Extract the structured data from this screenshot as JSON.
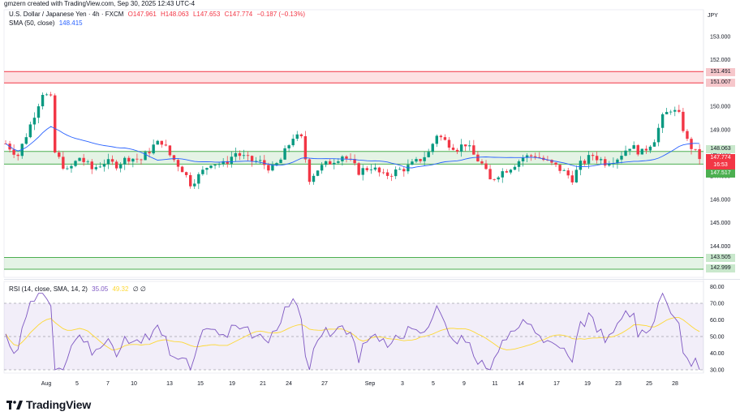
{
  "header": {
    "credit": "gmzern created with TradingView.com, Sep 30, 2025 12:43 UTC-4"
  },
  "legend": {
    "symbol": "U.S. Dollar / Japanese Yen · 4h · FXCM",
    "open": "O147.961",
    "high": "H148.063",
    "low": "L147.653",
    "close": "C147.774",
    "change": "−0.187 (−0.13%)",
    "sma_label": "SMA (50, close)",
    "sma_value": "148.415",
    "rsi_label": "RSI (14, close, SMA, 14, 2)",
    "rsi_value": "35.05",
    "rsi_sma_value": "49.32",
    "rsi_extra": "∅ ∅"
  },
  "currency": "JPY",
  "logo": {
    "text": "TradingView"
  },
  "colors": {
    "up": "#089981",
    "down": "#f23645",
    "sma": "#2962ff",
    "rsi": "#7e57c2",
    "rsi_sma": "#fdd835",
    "resistance_zone": "#f23645",
    "support_zone": "#4caf50"
  },
  "price_labels": {
    "r_top": "151.491",
    "r_bot": "151.007",
    "current_high": "148.063",
    "current": "147.774",
    "countdown": "16:53",
    "current_low": "147.517",
    "s_top": "143.505",
    "s_bot": "142.999"
  },
  "chart_data": [
    {
      "type": "candlestick",
      "title": "U.S. Dollar / Japanese Yen",
      "y_ticks": [
        "153.000",
        "152.000",
        "151.000",
        "150.000",
        "149.000",
        "148.000",
        "147.000",
        "146.000",
        "145.000",
        "144.000",
        "143.000"
      ],
      "ylim": [
        142.6,
        153.3
      ],
      "x_ticks": [
        "Aug",
        "5",
        "7",
        "10",
        "13",
        "15",
        "19",
        "21",
        "24",
        "27",
        "Sep",
        "3",
        "5",
        "9",
        "11",
        "14",
        "17",
        "19",
        "23",
        "25",
        "28"
      ],
      "zones": [
        {
          "name": "resistance",
          "from": 151.007,
          "to": 151.491
        },
        {
          "name": "pivot",
          "from": 147.517,
          "to": 148.063
        },
        {
          "name": "support",
          "from": 142.999,
          "to": 143.505
        }
      ],
      "approx_path": [
        [
          0,
          148.4
        ],
        [
          3,
          147.9
        ],
        [
          6,
          149.2
        ],
        [
          9,
          150.6
        ],
        [
          11,
          150.3
        ],
        [
          12,
          148.0
        ],
        [
          15,
          147.2
        ],
        [
          18,
          147.8
        ],
        [
          21,
          147.3
        ],
        [
          24,
          147.6
        ],
        [
          27,
          147.5
        ],
        [
          30,
          147.8
        ],
        [
          33,
          147.7
        ],
        [
          36,
          148.3
        ],
        [
          38,
          148.5
        ],
        [
          40,
          147.9
        ],
        [
          43,
          147.3
        ],
        [
          45,
          146.7
        ],
        [
          47,
          147.0
        ],
        [
          50,
          147.6
        ],
        [
          53,
          147.5
        ],
        [
          56,
          148.0
        ],
        [
          59,
          147.7
        ],
        [
          62,
          147.6
        ],
        [
          65,
          147.3
        ],
        [
          67,
          147.7
        ],
        [
          70,
          148.7
        ],
        [
          72,
          148.6
        ],
        [
          74,
          146.9
        ],
        [
          76,
          147.3
        ],
        [
          79,
          147.6
        ],
        [
          82,
          147.9
        ],
        [
          84,
          147.6
        ],
        [
          86,
          147.2
        ],
        [
          89,
          147.4
        ],
        [
          92,
          147.0
        ],
        [
          95,
          147.2
        ],
        [
          98,
          147.4
        ],
        [
          100,
          147.6
        ],
        [
          103,
          148.0
        ],
        [
          105,
          148.8
        ],
        [
          107,
          148.5
        ],
        [
          110,
          148.2
        ],
        [
          112,
          148.4
        ],
        [
          114,
          147.9
        ],
        [
          116,
          147.5
        ],
        [
          118,
          146.8
        ],
        [
          120,
          147.1
        ],
        [
          123,
          147.4
        ],
        [
          126,
          147.8
        ],
        [
          129,
          147.9
        ],
        [
          132,
          147.6
        ],
        [
          135,
          147.3
        ],
        [
          138,
          146.9
        ],
        [
          140,
          147.5
        ],
        [
          143,
          147.9
        ],
        [
          146,
          147.6
        ],
        [
          149,
          147.8
        ],
        [
          152,
          148.3
        ],
        [
          155,
          148.0
        ],
        [
          158,
          148.6
        ],
        [
          160,
          149.5
        ],
        [
          162,
          149.9
        ],
        [
          164,
          149.6
        ],
        [
          166,
          148.5
        ],
        [
          168,
          148.0
        ],
        [
          169,
          147.8
        ]
      ]
    },
    {
      "type": "line",
      "title": "RSI",
      "y_ticks": [
        "80.00",
        "70.00",
        "60.00",
        "50.00",
        "40.00",
        "30.00"
      ],
      "ylim": [
        27,
        83
      ],
      "bands": [
        70,
        50,
        30
      ]
    }
  ]
}
